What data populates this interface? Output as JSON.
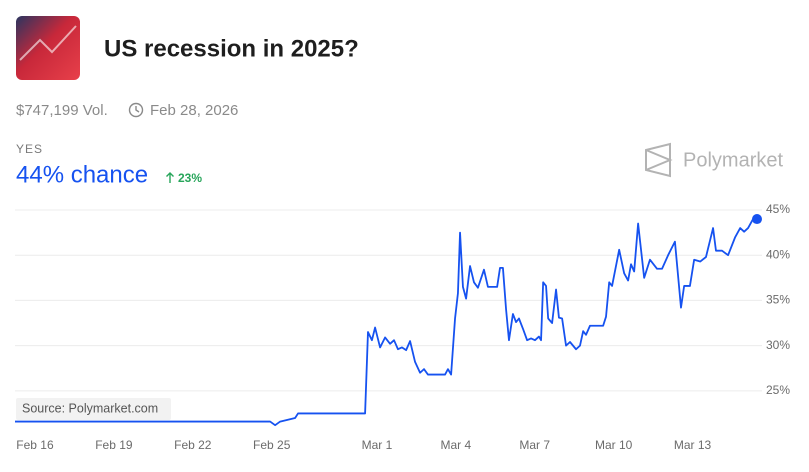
{
  "header": {
    "title": "US recession in 2025?",
    "volume": "$747,199 Vol.",
    "end_date": "Feb 28, 2026",
    "outcome": "YES",
    "headline": "44% chance",
    "change": "23%",
    "brand": "Polymarket"
  },
  "chart_data": {
    "type": "line",
    "color": "#1652f0",
    "source": "Source: Polymarket.com",
    "grid": true,
    "x": [
      -0.76,
      8.94,
      9.13,
      9.32,
      9.89,
      10.0,
      12.55,
      12.66,
      12.81,
      12.93,
      13.12,
      13.31,
      13.5,
      13.65,
      13.8,
      13.95,
      14.11,
      14.26,
      14.45,
      14.64,
      14.79,
      14.94,
      15.59,
      15.7,
      15.82,
      15.97,
      16.08,
      16.16,
      16.27,
      16.39,
      16.54,
      16.69,
      16.84,
      17.07,
      17.22,
      17.57,
      17.68,
      17.79,
      17.91,
      18.02,
      18.17,
      18.29,
      18.4,
      18.56,
      18.71,
      18.86,
      19.01,
      19.16,
      19.24,
      19.32,
      19.43,
      19.51,
      19.66,
      19.81,
      19.92,
      20.04,
      20.19,
      20.34,
      20.57,
      20.72,
      20.84,
      20.95,
      21.1,
      21.6,
      21.71,
      21.83,
      21.94,
      22.21,
      22.4,
      22.55,
      22.66,
      22.78,
      22.93,
      23.16,
      23.38,
      23.65,
      23.84,
      24.07,
      24.33,
      24.56,
      24.68,
      24.9,
      25.06,
      25.29,
      25.51,
      25.78,
      25.89,
      26.12,
      26.35,
      26.62,
      26.81,
      26.96,
      27.11,
      27.3,
      27.45
    ],
    "values": [
      21.6,
      21.6,
      21.2,
      21.6,
      22.0,
      22.5,
      22.5,
      31.5,
      30.6,
      32.0,
      29.8,
      30.9,
      30.2,
      30.6,
      29.6,
      29.8,
      29.5,
      30.5,
      28.2,
      27.0,
      27.4,
      26.8,
      26.8,
      27.4,
      26.8,
      33.0,
      35.8,
      42.5,
      36.5,
      35.2,
      38.8,
      37.0,
      36.4,
      38.4,
      36.5,
      36.5,
      38.6,
      38.6,
      34.0,
      30.6,
      33.5,
      32.6,
      33.0,
      31.8,
      30.6,
      30.8,
      30.6,
      31.0,
      30.6,
      37.0,
      36.6,
      33.0,
      32.5,
      36.2,
      33.1,
      33.0,
      30.0,
      30.4,
      29.6,
      30.0,
      31.6,
      31.2,
      32.2,
      32.2,
      33.2,
      37.0,
      36.6,
      40.6,
      38.0,
      37.2,
      39.0,
      38.2,
      43.5,
      37.5,
      39.5,
      38.5,
      38.5,
      40.0,
      41.5,
      34.2,
      36.6,
      36.6,
      39.5,
      39.3,
      39.8,
      43.0,
      40.5,
      40.5,
      40.0,
      42.0,
      43.0,
      42.6,
      43.0,
      44.0,
      44.0
    ],
    "xlim": [
      -0.76,
      27.45
    ],
    "xticks": [
      {
        "value": 0,
        "label": "Feb 16"
      },
      {
        "value": 3,
        "label": "Feb 19"
      },
      {
        "value": 6,
        "label": "Feb 22"
      },
      {
        "value": 9,
        "label": "Feb 25"
      },
      {
        "value": 13,
        "label": "Mar 1"
      },
      {
        "value": 16,
        "label": "Mar 4"
      },
      {
        "value": 19,
        "label": "Mar 7"
      },
      {
        "value": 22,
        "label": "Mar 10"
      },
      {
        "value": 25,
        "label": "Mar 13"
      }
    ],
    "ylim": [
      21,
      45
    ],
    "yticks": [
      {
        "value": 25,
        "label": "25%"
      },
      {
        "value": 30,
        "label": "30%"
      },
      {
        "value": 35,
        "label": "35%"
      },
      {
        "value": 40,
        "label": "40%"
      },
      {
        "value": 45,
        "label": "45%"
      }
    ]
  }
}
